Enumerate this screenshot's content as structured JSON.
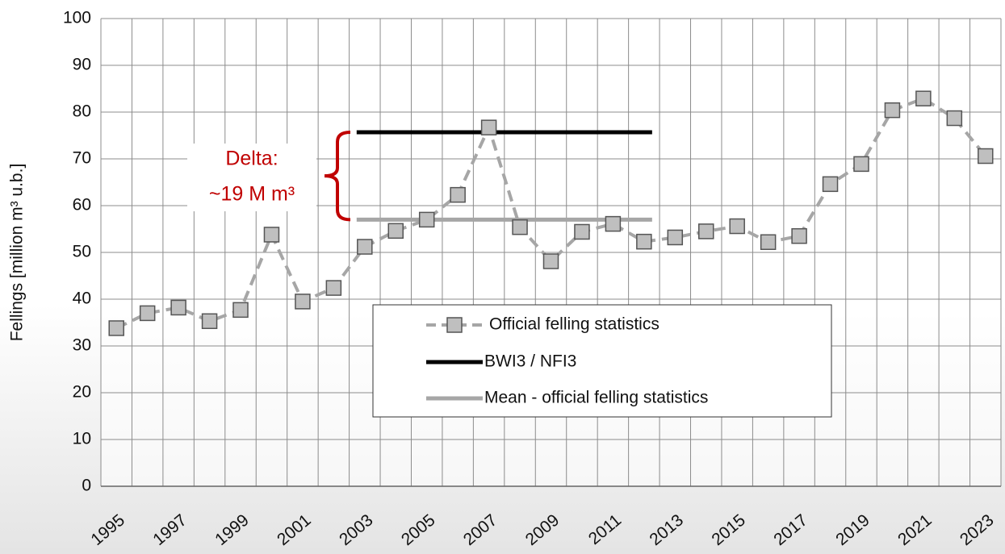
{
  "chart_data": {
    "type": "line",
    "y_label": "Fellings  [million m³ u.b.]",
    "categories": [
      "1995",
      null,
      "1997",
      null,
      "1999",
      null,
      "2001",
      null,
      "2003",
      null,
      "2005",
      null,
      "2007",
      null,
      "2009",
      null,
      "2011",
      null,
      "2013",
      null,
      "2015",
      null,
      "2017",
      null,
      "2019",
      null,
      "2021",
      null,
      "2023"
    ],
    "series": [
      {
        "name": "Official felling statistics",
        "color": "#a6a6a6",
        "marker_color": "#bfbfbf",
        "values": [
          33.8,
          37,
          38.2,
          35.3,
          37.7,
          53.8,
          39.5,
          42.4,
          51.2,
          54.6,
          57,
          62.3,
          76.7,
          55.4,
          48.1,
          54.4,
          56.1,
          52.3,
          53.2,
          54.5,
          55.6,
          52.2,
          53.5,
          64.6,
          68.9,
          80.4,
          82.9,
          78.7,
          70.6
        ]
      }
    ],
    "reference_lines": [
      {
        "name": "BWI3 / NFI3",
        "color": "#000000",
        "value": 75.7,
        "from": 8,
        "to": 17
      },
      {
        "name": "Mean - official felling statistics",
        "color": "#a6a6a6",
        "value": 57,
        "from": 8,
        "to": 17
      }
    ],
    "annotation": {
      "lines": [
        "Delta:",
        "~19 M m³"
      ],
      "color": "#c00000"
    },
    "ylim": [
      0,
      100
    ],
    "yticks": [
      0,
      10,
      20,
      30,
      40,
      50,
      60,
      70,
      80,
      90,
      100
    ],
    "grid": true
  }
}
